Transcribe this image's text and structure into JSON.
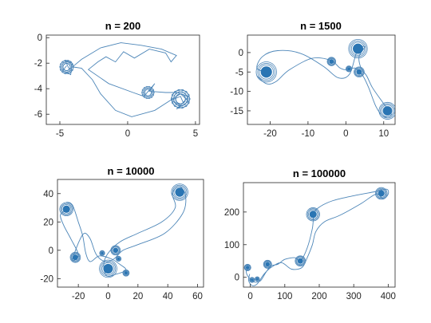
{
  "chart_data": [
    {
      "type": "line",
      "title": "n = 200",
      "xlim": [
        -6,
        5.3
      ],
      "ylim": [
        -6.8,
        0.2
      ],
      "xticks": [
        -5,
        0,
        5
      ],
      "xtick_labels": [
        "-5",
        "0",
        "5"
      ],
      "yticks": [
        0,
        -2,
        -4,
        -6
      ],
      "ytick_labels": [
        "0",
        "-2",
        "-4",
        "-6"
      ],
      "series": [
        {
          "color": "#4d86b8",
          "points": [
            [
              -4.5,
              -2.2
            ],
            [
              -4.8,
              -2.6
            ],
            [
              -4.2,
              -2.9
            ],
            [
              -4.1,
              -2.0
            ],
            [
              -4.6,
              -1.8
            ],
            [
              -4.3,
              -2.5
            ],
            [
              -3.4,
              -1.7
            ],
            [
              -2.0,
              -0.8
            ],
            [
              -0.5,
              -0.4
            ],
            [
              1.0,
              -0.6
            ],
            [
              2.5,
              -0.9
            ],
            [
              3.6,
              -1.4
            ],
            [
              3.2,
              -1.9
            ],
            [
              2.8,
              -1.2
            ],
            [
              1.6,
              -0.9
            ],
            [
              0.5,
              -1.6
            ],
            [
              -0.3,
              -1.1
            ],
            [
              -0.9,
              -1.9
            ],
            [
              -1.6,
              -1.5
            ],
            [
              -2.2,
              -1.9
            ],
            [
              -2.9,
              -2.5
            ],
            [
              -1.4,
              -3.6
            ],
            [
              0.4,
              -4.3
            ],
            [
              1.2,
              -4.6
            ],
            [
              2.0,
              -3.6
            ],
            [
              1.6,
              -4.2
            ],
            [
              2.8,
              -4.3
            ],
            [
              3.6,
              -4.3
            ],
            [
              4.5,
              -4.6
            ],
            [
              3.9,
              -5.3
            ],
            [
              3.2,
              -4.9
            ],
            [
              3.9,
              -4.6
            ],
            [
              4.1,
              -5.1
            ],
            [
              3.6,
              -5.6
            ],
            [
              4.5,
              -5.0
            ],
            [
              3.9,
              -4.4
            ],
            [
              2.0,
              -5.7
            ],
            [
              0.3,
              -6.2
            ],
            [
              -0.9,
              -5.7
            ],
            [
              -2.0,
              -4.4
            ],
            [
              -2.6,
              -3.3
            ],
            [
              -3.4,
              -2.4
            ],
            [
              -4.0,
              -2.3
            ]
          ]
        }
      ]
    },
    {
      "type": "line",
      "title": "n = 1500",
      "xlim": [
        -26,
        13
      ],
      "ylim": [
        -18.5,
        4.5
      ],
      "xticks": [
        -20,
        -10,
        0,
        10
      ],
      "xtick_labels": [
        "-20",
        "-10",
        "0",
        "10"
      ],
      "yticks": [
        0,
        -5,
        -10,
        -15
      ],
      "ytick_labels": [
        "0",
        "-5",
        "-10",
        "-15"
      ],
      "series": [
        {
          "color": "#4d86b8",
          "points": [
            [
              -21.0,
              -5.0
            ],
            [
              -23.5,
              -4.0
            ],
            [
              -22.0,
              -1.0
            ],
            [
              -18.0,
              0.5
            ],
            [
              -12.0,
              -0.2
            ],
            [
              -6.0,
              -3.5
            ],
            [
              -2.0,
              -6.5
            ],
            [
              1.0,
              -5.5
            ],
            [
              3.0,
              0.5
            ],
            [
              5.0,
              1.5
            ],
            [
              3.5,
              -1.0
            ],
            [
              4.0,
              -4.0
            ],
            [
              5.5,
              -6.0
            ],
            [
              7.0,
              -9.0
            ],
            [
              9.5,
              -12.5
            ],
            [
              11.0,
              -14.5
            ],
            [
              12.0,
              -16.0
            ],
            [
              10.0,
              -16.5
            ],
            [
              8.0,
              -14.0
            ],
            [
              6.0,
              -9.0
            ],
            [
              4.5,
              -6.0
            ],
            [
              2.5,
              -4.0
            ],
            [
              0.5,
              -4.5
            ],
            [
              -1.5,
              -4.0
            ],
            [
              -4.0,
              -2.0
            ],
            [
              -9.0,
              -1.5
            ],
            [
              -15.0,
              -4.5
            ],
            [
              -18.5,
              -7.5
            ],
            [
              -21.0,
              -8.0
            ],
            [
              -23.5,
              -6.0
            ]
          ]
        }
      ]
    },
    {
      "type": "line",
      "title": "n = 10000",
      "xlim": [
        -34,
        64
      ],
      "ylim": [
        -26,
        50
      ],
      "xticks": [
        -20,
        0,
        20,
        40,
        60
      ],
      "xtick_labels": [
        "-20",
        "0",
        "20",
        "40",
        "60"
      ],
      "yticks": [
        40,
        20,
        0,
        -20
      ],
      "ytick_labels": [
        "40",
        "20",
        "0",
        "-20"
      ],
      "series": [
        {
          "color": "#4d86b8",
          "points": [
            [
              -28.0,
              29.0
            ],
            [
              -32.0,
              25.0
            ],
            [
              -30.0,
              18.0
            ],
            [
              -25.0,
              8.0
            ],
            [
              -20.0,
              -3.0
            ],
            [
              -24.0,
              -7.0
            ],
            [
              -20.0,
              5.0
            ],
            [
              -16.0,
              12.0
            ],
            [
              -12.0,
              8.0
            ],
            [
              -8.0,
              -3.0
            ],
            [
              -2.0,
              -8.0
            ],
            [
              4.0,
              -6.0
            ],
            [
              10.0,
              0.0
            ],
            [
              20.0,
              4.0
            ],
            [
              38.0,
              12.0
            ],
            [
              50.0,
              26.0
            ],
            [
              52.0,
              38.0
            ],
            [
              48.0,
              45.0
            ],
            [
              43.0,
              40.0
            ],
            [
              45.0,
              30.0
            ],
            [
              36.0,
              20.0
            ],
            [
              20.0,
              12.0
            ],
            [
              8.0,
              6.0
            ],
            [
              0.0,
              -2.0
            ],
            [
              -3.0,
              -10.0
            ],
            [
              -1.0,
              -18.0
            ],
            [
              5.0,
              -17.0
            ],
            [
              12.0,
              -14.0
            ],
            [
              8.0,
              -10.0
            ],
            [
              2.0,
              -6.0
            ],
            [
              -6.0,
              -4.0
            ],
            [
              -12.0,
              -8.0
            ],
            [
              -15.0,
              -2.0
            ],
            [
              -17.0,
              10.0
            ],
            [
              -20.0,
              20.0
            ],
            [
              -24.0,
              32.0
            ],
            [
              -28.0,
              34.0
            ]
          ]
        }
      ]
    },
    {
      "type": "line",
      "title": "n = 100000",
      "xlim": [
        -20,
        420
      ],
      "ylim": [
        -30,
        290
      ],
      "xticks": [
        0,
        100,
        200,
        300,
        400
      ],
      "xtick_labels": [
        "0",
        "100",
        "200",
        "300",
        "400"
      ],
      "yticks": [
        200,
        100,
        0
      ],
      "ytick_labels": [
        "200",
        "100",
        "0"
      ],
      "series": [
        {
          "color": "#4d86b8",
          "points": [
            [
              -5.0,
              30.0
            ],
            [
              -12.0,
              20.0
            ],
            [
              -8.0,
              5.0
            ],
            [
              5.0,
              -10.0
            ],
            [
              15.0,
              -15.0
            ],
            [
              30.0,
              -10.0
            ],
            [
              45.0,
              15.0
            ],
            [
              60.0,
              35.0
            ],
            [
              80.0,
              40.0
            ],
            [
              100.0,
              55.0
            ],
            [
              130.0,
              60.0
            ],
            [
              145.0,
              50.0
            ],
            [
              165.0,
              90.0
            ],
            [
              180.0,
              150.0
            ],
            [
              185.0,
              195.0
            ],
            [
              200.0,
              215.0
            ],
            [
              240.0,
              235.0
            ],
            [
              300.0,
              250.0
            ],
            [
              360.0,
              262.0
            ],
            [
              395.0,
              270.0
            ],
            [
              400.0,
              255.0
            ],
            [
              385.0,
              240.0
            ],
            [
              365.0,
              255.0
            ],
            [
              320.0,
              225.0
            ],
            [
              260.0,
              190.0
            ],
            [
              215.0,
              170.0
            ],
            [
              190.0,
              140.0
            ],
            [
              180.0,
              100.0
            ],
            [
              165.0,
              60.0
            ],
            [
              150.0,
              30.0
            ],
            [
              120.0,
              25.0
            ],
            [
              90.0,
              45.0
            ],
            [
              60.0,
              30.0
            ],
            [
              40.0,
              10.0
            ],
            [
              20.0,
              -20.0
            ],
            [
              5.0,
              -25.0
            ],
            [
              -5.0,
              -10.0
            ],
            [
              -2.0,
              10.0
            ]
          ]
        }
      ]
    }
  ],
  "colors": {
    "series": "#4d86b8",
    "spiral": "#2a75b3",
    "axis": "#262626"
  }
}
